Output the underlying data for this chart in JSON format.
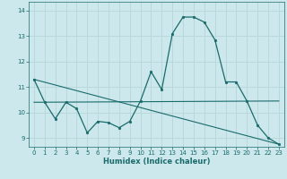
{
  "xlabel": "Humidex (Indice chaleur)",
  "bg_color": "#cce8ec",
  "line_color": "#1a6b6b",
  "grid_color": "#b8d8dc",
  "xlim": [
    -0.5,
    23.5
  ],
  "ylim": [
    8.65,
    14.35
  ],
  "yticks": [
    9,
    10,
    11,
    12,
    13,
    14
  ],
  "xticks": [
    0,
    1,
    2,
    3,
    4,
    5,
    6,
    7,
    8,
    9,
    10,
    11,
    12,
    13,
    14,
    15,
    16,
    17,
    18,
    19,
    20,
    21,
    22,
    23
  ],
  "line1_x": [
    0,
    1,
    2,
    3,
    4,
    5,
    6,
    7,
    8,
    9,
    10,
    11,
    12,
    13,
    14,
    15,
    16,
    17,
    18,
    19,
    20,
    21,
    22,
    23
  ],
  "line1_y": [
    11.3,
    10.4,
    9.75,
    10.4,
    10.15,
    9.2,
    9.65,
    9.6,
    9.4,
    9.65,
    10.45,
    11.6,
    10.9,
    13.1,
    13.75,
    13.75,
    13.55,
    12.85,
    11.2,
    11.2,
    10.45,
    9.5,
    9.0,
    8.75
  ],
  "line2_x": [
    0,
    23
  ],
  "line2_y": [
    11.3,
    8.75
  ],
  "line3_x": [
    0,
    23
  ],
  "line3_y": [
    10.4,
    10.45
  ]
}
